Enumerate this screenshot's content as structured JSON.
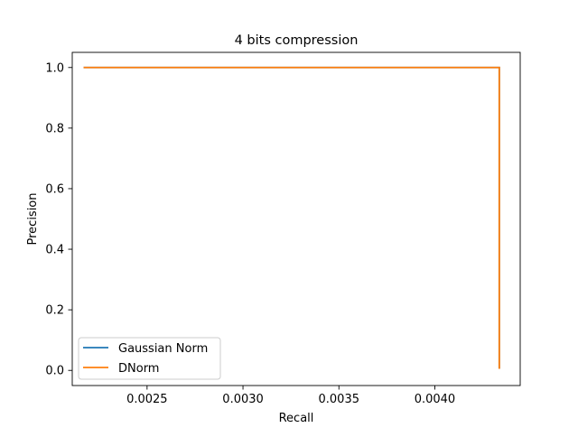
{
  "chart_data": {
    "type": "line",
    "title": "4 bits compression",
    "xlabel": "Recall",
    "ylabel": "Precision",
    "xlim": [
      0.00211,
      0.004445
    ],
    "ylim": [
      -0.05,
      1.05
    ],
    "x_ticks": [
      0.0025,
      0.003,
      0.0035,
      0.004
    ],
    "x_tick_labels": [
      "0.0025",
      "0.0030",
      "0.0035",
      "0.0040"
    ],
    "y_ticks": [
      0.0,
      0.2,
      0.4,
      0.6,
      0.8,
      1.0
    ],
    "y_tick_labels": [
      "0.0",
      "0.2",
      "0.4",
      "0.6",
      "0.8",
      "1.0"
    ],
    "grid": false,
    "legend_position": "lower-left",
    "series": [
      {
        "name": "Gaussian Norm",
        "color": "#1f77b4",
        "x": [
          0.002169,
          0.004336,
          0.004336
        ],
        "y": [
          1.0,
          1.0,
          0.005
        ]
      },
      {
        "name": "DNorm",
        "color": "#ff7f0e",
        "x": [
          0.002169,
          0.004336,
          0.004336
        ],
        "y": [
          1.0,
          1.0,
          0.005
        ]
      }
    ]
  }
}
